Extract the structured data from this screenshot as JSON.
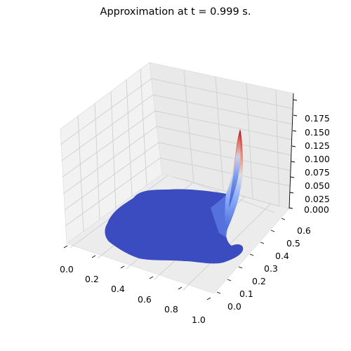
{
  "title": "Approximation at t = 0.999 s.",
  "chart_data": {
    "type": "surface3d",
    "title": "Approximation at t = 0.999 s.",
    "colormap": "coolwarm",
    "x_ticks": [
      "0.0",
      "0.2",
      "0.4",
      "0.6",
      "0.8",
      "1.0"
    ],
    "y_ticks": [
      "0.0",
      "0.1",
      "0.2",
      "0.3",
      "0.4",
      "0.5",
      "0.6"
    ],
    "z_ticks": [
      "0.000",
      "0.025",
      "0.050",
      "0.075",
      "0.100",
      "0.125",
      "0.150",
      "0.175"
    ],
    "xlim": [
      0.0,
      1.0
    ],
    "ylim": [
      0.0,
      0.6
    ],
    "zlim": [
      0.0,
      0.175
    ],
    "grid": true,
    "surface": {
      "description_of_values": "flat (~0) over most of the domain; sharp peak near x=1.0, y=0.6",
      "peak": {
        "x": 1.0,
        "y": 0.6,
        "z": 0.158
      },
      "base_value": 0.0
    },
    "colors": {
      "low": "#3b4cc0",
      "mid": "#dddddd",
      "high": "#b40426",
      "pane": "#f2f2f2",
      "grid": "#cfcfcf"
    }
  }
}
